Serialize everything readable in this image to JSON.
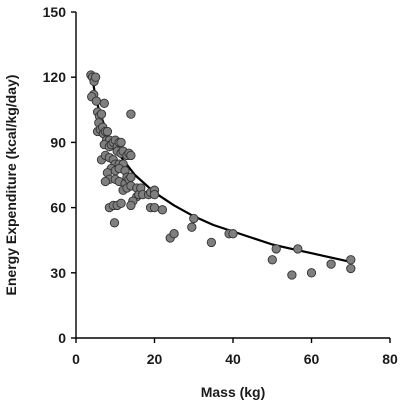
{
  "chart_data": {
    "type": "scatter",
    "title": "",
    "xlabel": "Mass (kg)",
    "ylabel": "Energy Expenditure (kcal/kg/day)",
    "xlim": [
      0,
      80
    ],
    "ylim": [
      0,
      150
    ],
    "x_ticks": [
      0,
      20,
      40,
      60,
      80
    ],
    "y_ticks": [
      0,
      30,
      60,
      90,
      120,
      150
    ],
    "x_tick_labels": [
      "0",
      "20",
      "40",
      "60",
      "80"
    ],
    "y_tick_labels": [
      "0",
      "30",
      "60",
      "90",
      "120",
      "150"
    ],
    "grid": false,
    "legend": "none",
    "colors": {
      "marker_fill": "#7f7f7f",
      "marker_edge": "#333333",
      "trend_line": "#000000",
      "axis": "#000000"
    },
    "points": [
      [
        3.8,
        121
      ],
      [
        4.2,
        120
      ],
      [
        4.6,
        118
      ],
      [
        5.0,
        120
      ],
      [
        4.5,
        112
      ],
      [
        4.0,
        111
      ],
      [
        5.2,
        109
      ],
      [
        5.5,
        104
      ],
      [
        6.0,
        102
      ],
      [
        6.5,
        103
      ],
      [
        5.8,
        99
      ],
      [
        5.5,
        95
      ],
      [
        6.2,
        96
      ],
      [
        6.8,
        97
      ],
      [
        7.0,
        94
      ],
      [
        7.5,
        95
      ],
      [
        8.0,
        95
      ],
      [
        7.2,
        108
      ],
      [
        7.8,
        91
      ],
      [
        8.5,
        91
      ],
      [
        7.2,
        89
      ],
      [
        8.5,
        88
      ],
      [
        9.0,
        89
      ],
      [
        9.5,
        90
      ],
      [
        10.0,
        91
      ],
      [
        10.5,
        88
      ],
      [
        11.0,
        90
      ],
      [
        11.5,
        90
      ],
      [
        10.5,
        86
      ],
      [
        11.5,
        85
      ],
      [
        12.0,
        86
      ],
      [
        6.5,
        82
      ],
      [
        7.5,
        84
      ],
      [
        8.5,
        83
      ],
      [
        9.5,
        82
      ],
      [
        10.0,
        80
      ],
      [
        11.0,
        80
      ],
      [
        12.0,
        80
      ],
      [
        13.0,
        84
      ],
      [
        13.5,
        85
      ],
      [
        14.0,
        84
      ],
      [
        14.0,
        103
      ],
      [
        9.0,
        78
      ],
      [
        10.0,
        77
      ],
      [
        11.0,
        78
      ],
      [
        12.5,
        77
      ],
      [
        8.0,
        76
      ],
      [
        8.5,
        73
      ],
      [
        7.5,
        72
      ],
      [
        10.0,
        73
      ],
      [
        11.0,
        72
      ],
      [
        12.5,
        71
      ],
      [
        13.0,
        74
      ],
      [
        13.5,
        73
      ],
      [
        14.0,
        74
      ],
      [
        12.0,
        68
      ],
      [
        13.0,
        69
      ],
      [
        14.0,
        70
      ],
      [
        15.5,
        65
      ],
      [
        15.5,
        69
      ],
      [
        14.5,
        63
      ],
      [
        14.0,
        61
      ],
      [
        16.0,
        66
      ],
      [
        16.5,
        69
      ],
      [
        17.0,
        66
      ],
      [
        18.5,
        66
      ],
      [
        19.0,
        67
      ],
      [
        20.0,
        68
      ],
      [
        20.0,
        66
      ],
      [
        19.0,
        60
      ],
      [
        20.0,
        60
      ],
      [
        22.0,
        59
      ],
      [
        8.5,
        60
      ],
      [
        9.5,
        61
      ],
      [
        10.5,
        61
      ],
      [
        11.5,
        62
      ],
      [
        9.8,
        53
      ],
      [
        24.0,
        46
      ],
      [
        25.0,
        48
      ],
      [
        29.5,
        51
      ],
      [
        30.0,
        55
      ],
      [
        34.5,
        44
      ],
      [
        39.0,
        48
      ],
      [
        40.0,
        48
      ],
      [
        50.0,
        36
      ],
      [
        51.0,
        41
      ],
      [
        55.0,
        29
      ],
      [
        56.5,
        41
      ],
      [
        60.0,
        30
      ],
      [
        65.0,
        34
      ],
      [
        70.0,
        32
      ],
      [
        70.0,
        36
      ]
    ],
    "trend_curve": {
      "x": [
        3.8,
        5,
        6,
        8,
        10,
        12,
        15,
        20,
        25,
        30,
        35,
        40,
        45,
        50,
        55,
        60,
        65,
        70
      ],
      "y": [
        123,
        111,
        104,
        94,
        87,
        82,
        75,
        67,
        61,
        56,
        52,
        49,
        46,
        43,
        41,
        39,
        37,
        35
      ]
    }
  }
}
